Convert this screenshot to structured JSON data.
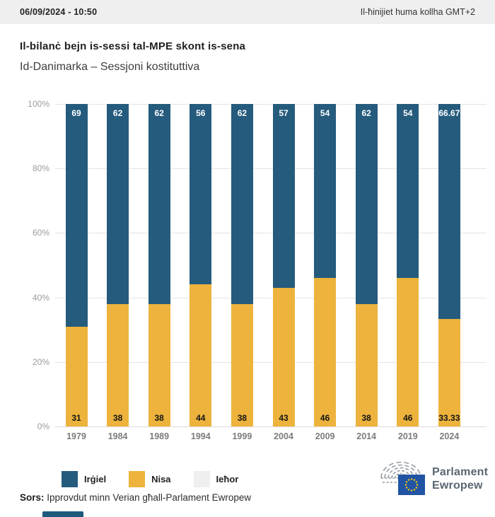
{
  "header": {
    "datetime": "06/09/2024 - 10:50",
    "timezone_note": "Il-ħinijiet huma kollha GMT+2"
  },
  "title": "Il-bilanċ bejn is-sessi tal-MPE skont is-sena",
  "subtitle": "Id-Danimarka – Sessjoni kostituttiva",
  "chart_data": {
    "type": "bar",
    "stacked": true,
    "title": "Il-bilanċ bejn is-sessi tal-MPE skont is-sena",
    "subtitle": "Id-Danimarka – Sessjoni kostituttiva",
    "categories": [
      "1979",
      "1984",
      "1989",
      "1994",
      "1999",
      "2004",
      "2009",
      "2014",
      "2019",
      "2024"
    ],
    "series": [
      {
        "name": "Irġiel",
        "color": "#255b7d",
        "values": [
          69,
          62,
          62,
          56,
          62,
          57,
          54,
          62,
          54,
          66.67
        ],
        "labels": [
          "69",
          "62",
          "62",
          "56",
          "62",
          "57",
          "54",
          "62",
          "54",
          "66.67"
        ]
      },
      {
        "name": "Nisa",
        "color": "#edb33c",
        "values": [
          31,
          38,
          38,
          44,
          38,
          43,
          46,
          38,
          46,
          33.33
        ],
        "labels": [
          "31",
          "38",
          "38",
          "44",
          "38",
          "43",
          "46",
          "38",
          "46",
          "33.33"
        ]
      },
      {
        "name": "Ieħor",
        "color": "#efefef",
        "values": [
          0,
          0,
          0,
          0,
          0,
          0,
          0,
          0,
          0,
          0
        ],
        "labels": [
          "",
          "",
          "",
          "",
          "",
          "",
          "",
          "",
          "",
          ""
        ]
      }
    ],
    "y_ticks": [
      "100%",
      "80%",
      "60%",
      "40%",
      "20%",
      "0%"
    ],
    "ylim": [
      0,
      100
    ],
    "grid": true,
    "legend_position": "bottom",
    "units": "percent"
  },
  "legend": {
    "items": [
      {
        "label": "Irġiel",
        "color": "#255b7d"
      },
      {
        "label": "Nisa",
        "color": "#edb33c"
      },
      {
        "label": "Ieħor",
        "color": "#efefef"
      }
    ]
  },
  "source": {
    "prefix": "Sors:",
    "text": " Ipprovdut minn Verian għall-Parlament Ewropew"
  },
  "logo": {
    "line1": "Parlament",
    "line2": "Ewropew"
  },
  "colors": {
    "men": "#255b7d",
    "women": "#edb33c",
    "other": "#efefef",
    "topbar_bg": "#efefef",
    "gridline": "#e4e4e4",
    "flag_blue": "#2155a4",
    "flag_stars": "#ffcc00",
    "logo_gray": "#8d979e"
  }
}
